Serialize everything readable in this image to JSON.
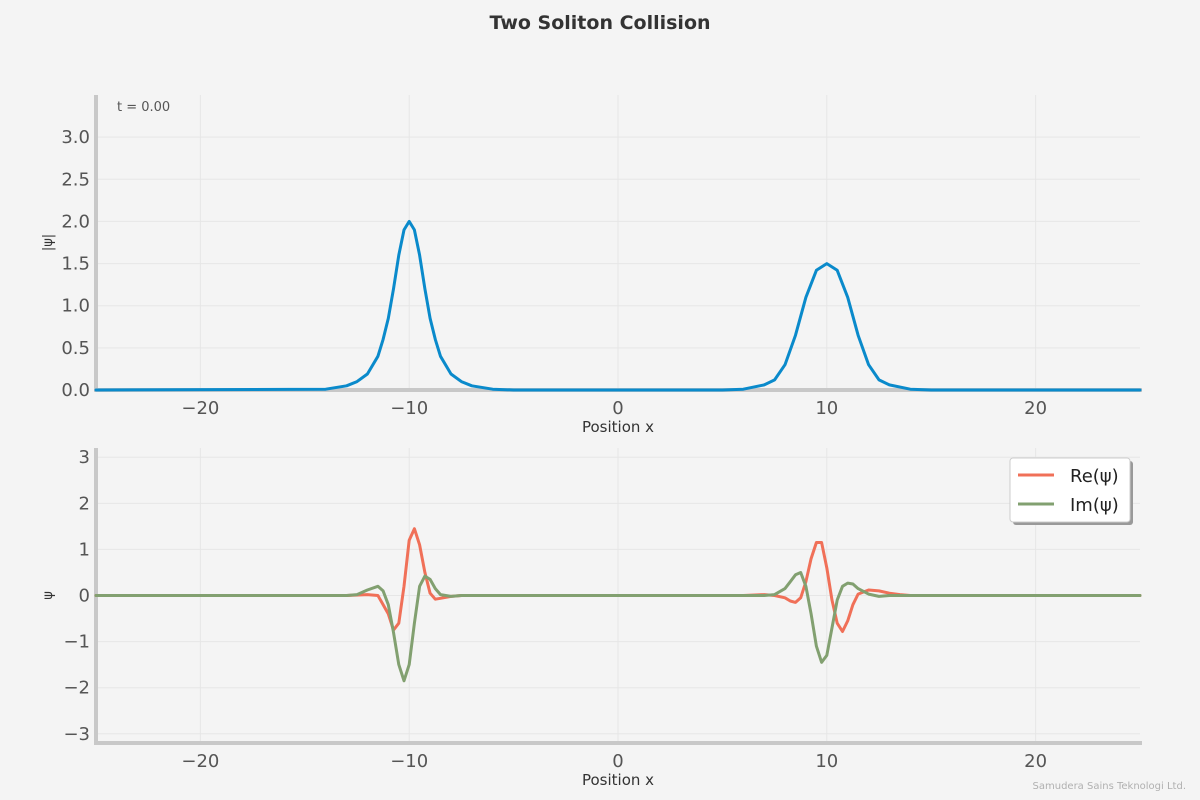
{
  "title": "Two Soliton Collision",
  "watermark": "Samudera Sains Teknologi Ltd.",
  "colors": {
    "background": "#f4f4f4",
    "abs": "#0a8acb",
    "re": "#f07058",
    "im": "#82a070",
    "spine": "#c8c8c8",
    "grid": "#e6e6e6"
  },
  "chart_data": [
    {
      "type": "line",
      "annotation": "t = 0.00",
      "xlabel": "Position x",
      "ylabel": "|ψ|",
      "xlim": [
        -25,
        25
      ],
      "ylim": [
        0,
        3.5
      ],
      "xticks": [
        -20,
        -10,
        0,
        10,
        20
      ],
      "xtick_labels": [
        "−20",
        "−10",
        "0",
        "10",
        "20"
      ],
      "yticks": [
        0,
        0.5,
        1,
        1.5,
        2,
        2.5,
        3
      ],
      "ytick_labels": [
        "0.0",
        "0.5",
        "1.0",
        "1.5",
        "2.0",
        "2.5",
        "3.0"
      ],
      "grid": true,
      "legend": null,
      "series": [
        {
          "x": [
            -25,
            -14,
            -13,
            -12.5,
            -12,
            -11.5,
            -11.25,
            -11,
            -10.75,
            -10.5,
            -10.25,
            -10,
            -9.75,
            -9.5,
            -9.25,
            -9,
            -8.75,
            -8.5,
            -8,
            -7.5,
            -7,
            -6,
            -5,
            0,
            5,
            6,
            7,
            7.5,
            8,
            8.5,
            9,
            9.5,
            10,
            10.5,
            11,
            11.5,
            12,
            12.5,
            13,
            14,
            15,
            25
          ],
          "y": [
            0,
            0.01,
            0.05,
            0.1,
            0.19,
            0.4,
            0.6,
            0.85,
            1.2,
            1.6,
            1.9,
            2.0,
            1.9,
            1.6,
            1.2,
            0.85,
            0.6,
            0.4,
            0.19,
            0.1,
            0.05,
            0.01,
            0,
            0,
            0,
            0.01,
            0.06,
            0.12,
            0.3,
            0.65,
            1.1,
            1.42,
            1.5,
            1.42,
            1.1,
            0.65,
            0.3,
            0.12,
            0.06,
            0.01,
            0,
            0
          ]
        }
      ]
    },
    {
      "type": "line",
      "xlabel": "Position x",
      "ylabel": "ψ",
      "xlim": [
        -25,
        25
      ],
      "ylim": [
        -3.2,
        3.2
      ],
      "xticks": [
        -20,
        -10,
        0,
        10,
        20
      ],
      "xtick_labels": [
        "−20",
        "−10",
        "0",
        "10",
        "20"
      ],
      "yticks": [
        -3,
        -2,
        -1,
        0,
        1,
        2,
        3
      ],
      "ytick_labels": [
        "−3",
        "−2",
        "−1",
        "0",
        "1",
        "2",
        "3"
      ],
      "grid": true,
      "legend": "top-right",
      "series": [
        {
          "name": "Re(ψ)",
          "x": [
            -25,
            -13,
            -12,
            -11.5,
            -11,
            -10.75,
            -10.5,
            -10.25,
            -10,
            -9.75,
            -9.5,
            -9.25,
            -9,
            -8.75,
            -8.5,
            -8,
            -7.5,
            -7,
            0,
            6,
            7,
            7.5,
            8,
            8.25,
            8.5,
            8.75,
            9,
            9.25,
            9.5,
            9.75,
            10,
            10.25,
            10.5,
            10.75,
            11,
            11.25,
            11.5,
            12,
            12.5,
            13,
            13.5,
            14,
            25
          ],
          "y": [
            0,
            0,
            0.02,
            0,
            -0.4,
            -0.75,
            -0.6,
            0.2,
            1.2,
            1.45,
            1.1,
            0.5,
            0.05,
            -0.08,
            -0.06,
            -0.02,
            0,
            0,
            0,
            0,
            0.02,
            0,
            -0.05,
            -0.12,
            -0.15,
            -0.05,
            0.3,
            0.8,
            1.15,
            1.15,
            0.6,
            -0.1,
            -0.6,
            -0.78,
            -0.55,
            -0.2,
            0.03,
            0.12,
            0.1,
            0.05,
            0.02,
            0,
            0
          ]
        },
        {
          "name": "Im(ψ)",
          "x": [
            -25,
            -13,
            -12.5,
            -12,
            -11.5,
            -11.25,
            -11,
            -10.75,
            -10.5,
            -10.25,
            -10,
            -9.75,
            -9.5,
            -9.25,
            -9,
            -8.75,
            -8.5,
            -8,
            -7.5,
            -7,
            0,
            6,
            7,
            7.5,
            8,
            8.25,
            8.5,
            8.75,
            9,
            9.25,
            9.5,
            9.75,
            10,
            10.25,
            10.5,
            10.75,
            11,
            11.25,
            11.5,
            12,
            12.5,
            13,
            13.5,
            14,
            25
          ],
          "y": [
            0,
            0,
            0.02,
            0.12,
            0.2,
            0.1,
            -0.2,
            -0.8,
            -1.5,
            -1.85,
            -1.5,
            -0.6,
            0.2,
            0.42,
            0.35,
            0.15,
            0.02,
            -0.02,
            0,
            0,
            0,
            0,
            0,
            0.02,
            0.15,
            0.3,
            0.45,
            0.5,
            0.2,
            -0.4,
            -1.1,
            -1.45,
            -1.3,
            -0.7,
            -0.1,
            0.2,
            0.27,
            0.25,
            0.15,
            0.03,
            -0.02,
            0,
            0,
            0,
            0
          ]
        }
      ]
    }
  ]
}
